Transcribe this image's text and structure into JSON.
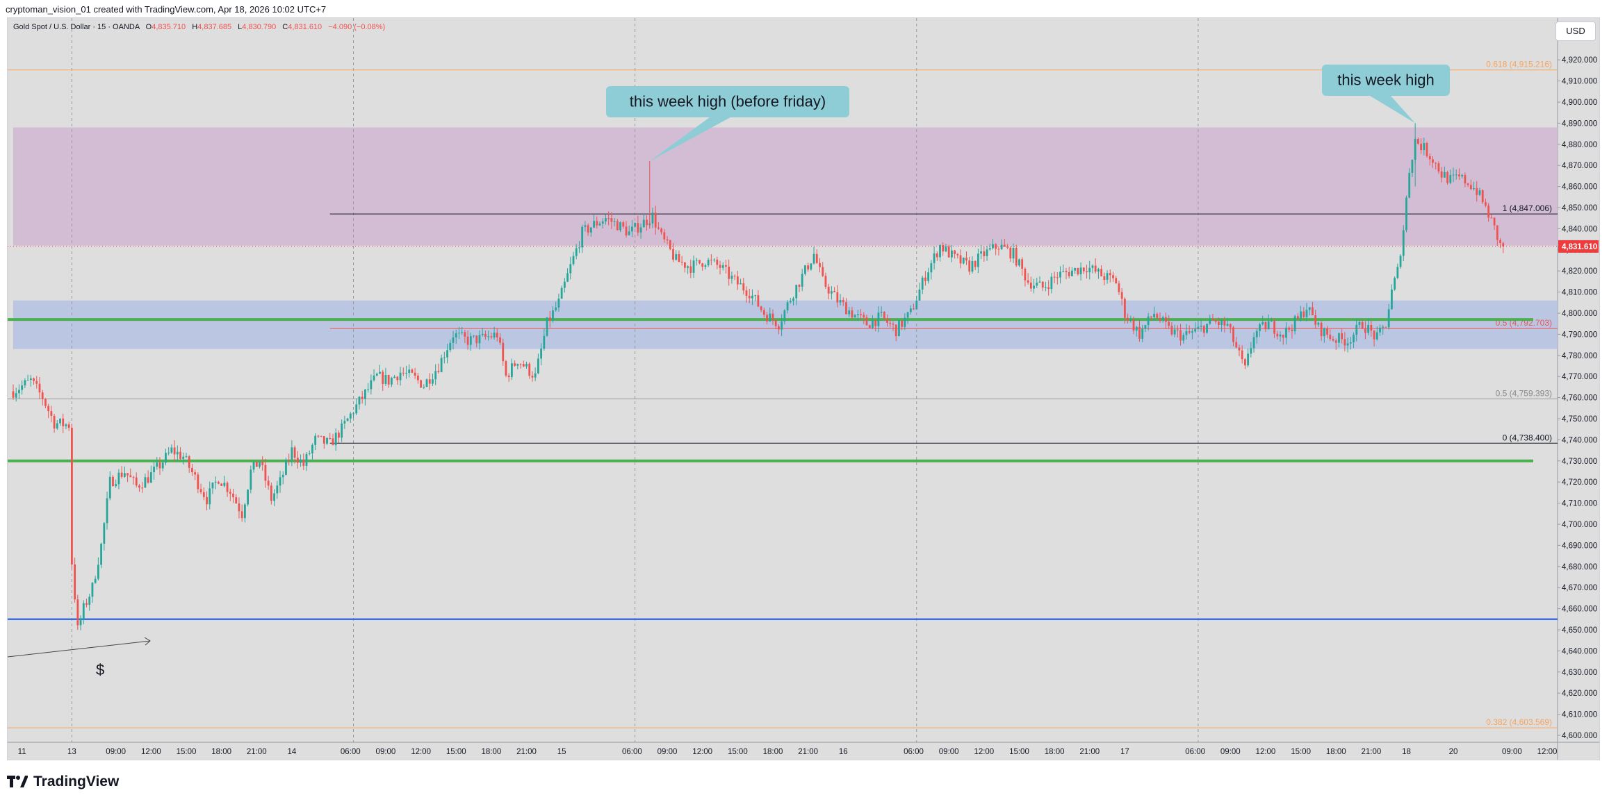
{
  "credit": "cryptoman_vision_01 created with TradingView.com, Apr 18, 2026 10:02 UTC+7",
  "legend": {
    "symbol": "Gold Spot / U.S. Dollar · 15 · OANDA",
    "o_label": "O",
    "o_value": "4,835.710",
    "h_label": "H",
    "h_value": "4,837.685",
    "l_label": "L",
    "l_value": "4,830.790",
    "c_label": "C",
    "c_value": "4,831.610",
    "change": "−4.090 (−0.08%)"
  },
  "currency": "USD",
  "brand": "TradingView",
  "colors": {
    "up": "#26a69a",
    "down": "#ef5350",
    "fib_orange": "#f7a35c",
    "green_line": "#4caf50",
    "blue_line": "#3b6fe0",
    "supply_zone": "#d2b9d3",
    "demand_zone": "#b7c3e3",
    "price_tag": "#ef3b3b",
    "callout": "#8fcdd6"
  },
  "chart_data": {
    "type": "candlestick",
    "instrument": "XAUUSD",
    "timeframe": "15",
    "last_price": 4831.61,
    "last_price_label": "4,831.610",
    "ylim": [
      4600,
      4925
    ],
    "y_ticks": [
      "4,600.000",
      "4,610.000",
      "4,620.000",
      "4,630.000",
      "4,640.000",
      "4,650.000",
      "4,660.000",
      "4,670.000",
      "4,680.000",
      "4,690.000",
      "4,700.000",
      "4,710.000",
      "4,720.000",
      "4,730.000",
      "4,740.000",
      "4,750.000",
      "4,760.000",
      "4,770.000",
      "4,780.000",
      "4,790.000",
      "4,800.000",
      "4,810.000",
      "4,820.000",
      "4,830.000",
      "4,840.000",
      "4,850.000",
      "4,860.000",
      "4,870.000",
      "4,880.000",
      "4,890.000",
      "4,900.000",
      "4,910.000",
      "4,920.000"
    ],
    "x_ticks": [
      {
        "label": "11",
        "bar": 3
      },
      {
        "label": "13",
        "bar": 20
      },
      {
        "label": "09:00",
        "bar": 35
      },
      {
        "label": "12:00",
        "bar": 47
      },
      {
        "label": "15:00",
        "bar": 59
      },
      {
        "label": "18:00",
        "bar": 71
      },
      {
        "label": "21:00",
        "bar": 83
      },
      {
        "label": "14",
        "bar": 95
      },
      {
        "label": "06:00",
        "bar": 115
      },
      {
        "label": "09:00",
        "bar": 127
      },
      {
        "label": "12:00",
        "bar": 139
      },
      {
        "label": "15:00",
        "bar": 151
      },
      {
        "label": "18:00",
        "bar": 163
      },
      {
        "label": "21:00",
        "bar": 175
      },
      {
        "label": "15",
        "bar": 187
      },
      {
        "label": "06:00",
        "bar": 211
      },
      {
        "label": "09:00",
        "bar": 223
      },
      {
        "label": "12:00",
        "bar": 235
      },
      {
        "label": "15:00",
        "bar": 247
      },
      {
        "label": "18:00",
        "bar": 259
      },
      {
        "label": "21:00",
        "bar": 271
      },
      {
        "label": "16",
        "bar": 283
      },
      {
        "label": "06:00",
        "bar": 307
      },
      {
        "label": "09:00",
        "bar": 319
      },
      {
        "label": "12:00",
        "bar": 331
      },
      {
        "label": "15:00",
        "bar": 343
      },
      {
        "label": "18:00",
        "bar": 355
      },
      {
        "label": "21:00",
        "bar": 367
      },
      {
        "label": "17",
        "bar": 379
      },
      {
        "label": "06:00",
        "bar": 403
      },
      {
        "label": "09:00",
        "bar": 415
      },
      {
        "label": "12:00",
        "bar": 427
      },
      {
        "label": "15:00",
        "bar": 439
      },
      {
        "label": "18:00",
        "bar": 451
      },
      {
        "label": "21:00",
        "bar": 463
      },
      {
        "label": "18",
        "bar": 475
      },
      {
        "label": "20",
        "bar": 491
      },
      {
        "label": "09:00",
        "bar": 511
      },
      {
        "label": "12:00",
        "bar": 523
      }
    ],
    "day_separators": [
      20,
      116,
      212,
      308,
      404
    ],
    "price_path": [
      [
        0,
        4763
      ],
      [
        6,
        4768
      ],
      [
        10,
        4760
      ],
      [
        14,
        4748
      ],
      [
        19,
        4747
      ],
      [
        20,
        4682
      ],
      [
        22,
        4650
      ],
      [
        24,
        4660
      ],
      [
        27,
        4670
      ],
      [
        30,
        4690
      ],
      [
        33,
        4720
      ],
      [
        38,
        4725
      ],
      [
        42,
        4718
      ],
      [
        46,
        4722
      ],
      [
        50,
        4728
      ],
      [
        54,
        4735
      ],
      [
        58,
        4732
      ],
      [
        62,
        4722
      ],
      [
        66,
        4712
      ],
      [
        70,
        4722
      ],
      [
        74,
        4716
      ],
      [
        78,
        4705
      ],
      [
        81,
        4725
      ],
      [
        84,
        4730
      ],
      [
        88,
        4712
      ],
      [
        91,
        4720
      ],
      [
        95,
        4735
      ],
      [
        99,
        4728
      ],
      [
        103,
        4740
      ],
      [
        108,
        4738
      ],
      [
        112,
        4745
      ],
      [
        116,
        4754
      ],
      [
        120,
        4762
      ],
      [
        124,
        4770
      ],
      [
        128,
        4768
      ],
      [
        132,
        4772
      ],
      [
        136,
        4770
      ],
      [
        140,
        4766
      ],
      [
        145,
        4775
      ],
      [
        150,
        4790
      ],
      [
        155,
        4787
      ],
      [
        160,
        4788
      ],
      [
        165,
        4790
      ],
      [
        168,
        4770
      ],
      [
        172,
        4778
      ],
      [
        178,
        4770
      ],
      [
        182,
        4795
      ],
      [
        186,
        4805
      ],
      [
        190,
        4822
      ],
      [
        194,
        4838
      ],
      [
        198,
        4842
      ],
      [
        202,
        4845
      ],
      [
        206,
        4842
      ],
      [
        210,
        4838
      ],
      [
        214,
        4842
      ],
      [
        218,
        4846
      ],
      [
        221,
        4836
      ],
      [
        226,
        4825
      ],
      [
        231,
        4822
      ],
      [
        236,
        4825
      ],
      [
        241,
        4822
      ],
      [
        246,
        4815
      ],
      [
        251,
        4810
      ],
      [
        256,
        4800
      ],
      [
        261,
        4795
      ],
      [
        266,
        4810
      ],
      [
        270,
        4820
      ],
      [
        273,
        4828
      ],
      [
        276,
        4815
      ],
      [
        281,
        4806
      ],
      [
        286,
        4800
      ],
      [
        291,
        4795
      ],
      [
        296,
        4798
      ],
      [
        301,
        4792
      ],
      [
        306,
        4800
      ],
      [
        311,
        4818
      ],
      [
        316,
        4832
      ],
      [
        321,
        4826
      ],
      [
        326,
        4822
      ],
      [
        331,
        4828
      ],
      [
        336,
        4832
      ],
      [
        341,
        4828
      ],
      [
        346,
        4815
      ],
      [
        351,
        4812
      ],
      [
        356,
        4818
      ],
      [
        361,
        4820
      ],
      [
        366,
        4822
      ],
      [
        371,
        4818
      ],
      [
        376,
        4815
      ],
      [
        379,
        4800
      ],
      [
        384,
        4790
      ],
      [
        389,
        4800
      ],
      [
        394,
        4792
      ],
      [
        399,
        4789
      ],
      [
        404,
        4792
      ],
      [
        409,
        4796
      ],
      [
        414,
        4794
      ],
      [
        418,
        4780
      ],
      [
        420,
        4773
      ],
      [
        423,
        4790
      ],
      [
        428,
        4795
      ],
      [
        433,
        4790
      ],
      [
        438,
        4797
      ],
      [
        441,
        4803
      ],
      [
        445,
        4793
      ],
      [
        450,
        4788
      ],
      [
        455,
        4787
      ],
      [
        460,
        4795
      ],
      [
        465,
        4788
      ],
      [
        468,
        4795
      ],
      [
        470,
        4810
      ],
      [
        472,
        4820
      ],
      [
        474,
        4840
      ],
      [
        476,
        4868
      ],
      [
        478,
        4882
      ],
      [
        481,
        4878
      ],
      [
        484,
        4873
      ],
      [
        487,
        4866
      ],
      [
        490,
        4863
      ],
      [
        493,
        4864
      ],
      [
        496,
        4862
      ],
      [
        499,
        4858
      ],
      [
        502,
        4850
      ],
      [
        505,
        4840
      ],
      [
        507,
        4832
      ],
      [
        508,
        4831.61
      ]
    ],
    "zones": [
      {
        "name": "supply-zone",
        "from": 4832,
        "to": 4888,
        "bar_start": 0
      },
      {
        "name": "demand-zone",
        "from": 4783,
        "to": 4806,
        "bar_start": 0
      }
    ],
    "horizontal_lines": [
      {
        "name": "fib-0618",
        "price": 4915.216,
        "label": "0.618 (4,915.216)",
        "color": "orange"
      },
      {
        "name": "fib-0382",
        "price": 4603.569,
        "label": "0.382 (4,603.569)",
        "color": "orange"
      },
      {
        "name": "fib-0-5-grey",
        "price": 4759.393,
        "label": "0.5 (4,759.393)",
        "color": "grey"
      },
      {
        "name": "fib-1",
        "price": 4847.006,
        "label": "1 (4,847.006)",
        "color": "black",
        "bar_start": 108
      },
      {
        "name": "fib-0",
        "price": 4738.4,
        "label": "0 (4,738.400)",
        "color": "black",
        "bar_start": 108
      },
      {
        "name": "fib-0-5-red",
        "price": 4792.703,
        "label": "0.5 (4,792.703)",
        "color": "red",
        "bar_start": 108
      },
      {
        "name": "green-level-upper",
        "price": 4797,
        "label": "",
        "color": "green"
      },
      {
        "name": "green-level-lower",
        "price": 4730,
        "label": "",
        "color": "green"
      },
      {
        "name": "blue-level",
        "price": 4655,
        "label": "",
        "color": "blue"
      }
    ],
    "annotations": [
      {
        "name": "callout-before-friday",
        "text": "this week high (before friday)",
        "bar": 217,
        "price": 4872
      },
      {
        "name": "callout-week-high",
        "text": "this week high",
        "bar": 478,
        "price": 4890
      },
      {
        "name": "dollar-label",
        "text": "$"
      }
    ]
  }
}
